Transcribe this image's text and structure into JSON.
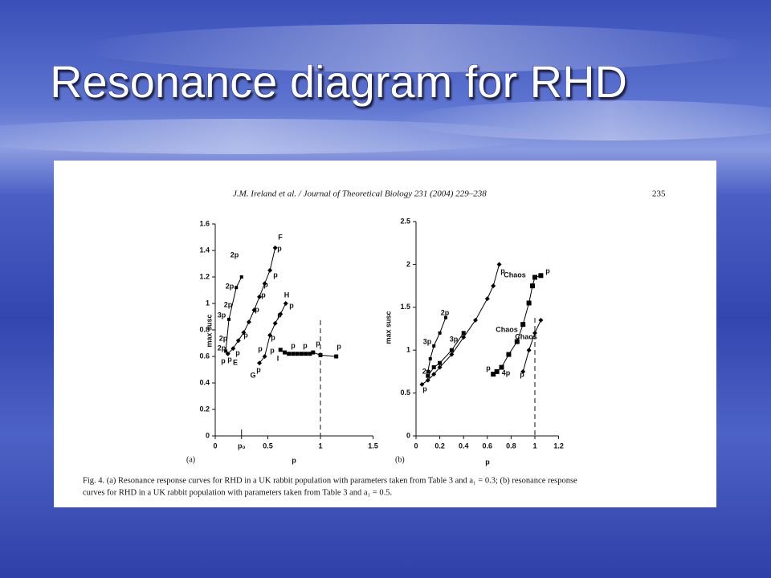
{
  "slide": {
    "title": "Resonance diagram for RHD"
  },
  "figure": {
    "header": "J.M. Ireland et al. / Journal of Theoretical Biology 231 (2004) 229–238",
    "page_number": "235",
    "caption": [
      "Fig. 4. (a) Resonance response curves for RHD in a UK rabbit population with parameters taken from Table 3 and a₁ = 0.3; (b) resonance response",
      "curves for RHD in a UK rabbit population with parameters taken from Table 3 and a₁ = 0.5."
    ]
  },
  "chart_data": [
    {
      "type": "line",
      "panel": "(a)",
      "x_label": "p",
      "y_label": "max susc",
      "xlim": [
        0,
        1.5
      ],
      "xticks": [
        0,
        {
          "value": 0.25,
          "label": "p₀"
        },
        0.5,
        1,
        1.5
      ],
      "ylim": [
        0,
        1.6
      ],
      "yticks": [
        0,
        0.2,
        0.4,
        0.6,
        0.8,
        1,
        1.2,
        1.4,
        1.6
      ],
      "vlines": [
        1
      ],
      "vline_style": "dashed",
      "series": [
        {
          "color": "#000000",
          "marker": "diamond",
          "marker_size": 3,
          "x": [
            0.12,
            0.17,
            0.22,
            0.27,
            0.32,
            0.37,
            0.42,
            0.47,
            0.52,
            0.57
          ],
          "values": [
            0.62,
            0.66,
            0.72,
            0.78,
            0.86,
            0.95,
            1.05,
            1.15,
            1.25,
            1.42
          ]
        },
        {
          "color": "#000000",
          "marker": "square",
          "marker_size": 4,
          "x": [
            0.1,
            0.13,
            0.2,
            0.25
          ],
          "values": [
            0.64,
            0.88,
            1.12,
            1.2
          ]
        },
        {
          "color": "#000000",
          "marker": "diamond",
          "marker_size": 3,
          "x": [
            0.42,
            0.47,
            0.52,
            0.57,
            0.62,
            0.67
          ],
          "values": [
            0.55,
            0.6,
            0.76,
            0.85,
            0.92,
            1.0
          ]
        },
        {
          "color": "#000000",
          "marker": "square",
          "marker_size": 5,
          "x": [
            0.62,
            0.66,
            0.7,
            0.74,
            0.78,
            0.82,
            0.86,
            0.9,
            0.93,
            1.0,
            1.15
          ],
          "values": [
            0.65,
            0.63,
            0.62,
            0.62,
            0.62,
            0.62,
            0.62,
            0.62,
            0.63,
            0.61,
            0.6
          ]
        }
      ],
      "annotations": [
        "F",
        "p",
        "2p",
        "2p",
        "p",
        "2p",
        "p",
        "p",
        "3p",
        "H",
        "p",
        "p",
        "p",
        "2p",
        "p",
        "2p",
        "p",
        "p",
        "p",
        "p",
        "E",
        "p",
        "p",
        "I",
        "G",
        "p",
        "p",
        "p",
        "p",
        "p"
      ]
    },
    {
      "type": "line",
      "panel": "(b)",
      "x_label": "p",
      "y_label": "max susc",
      "xlim": [
        0,
        1.2
      ],
      "xticks": [
        0,
        0.2,
        0.4,
        0.6,
        0.8,
        1,
        1.2
      ],
      "ylim": [
        0,
        2.5
      ],
      "yticks": [
        0,
        0.5,
        1,
        1.5,
        2,
        2.5
      ],
      "vlines": [
        1
      ],
      "vline_style": "dashed",
      "series": [
        {
          "color": "#000000",
          "marker": "diamond",
          "marker_size": 3,
          "x": [
            0.05,
            0.1,
            0.15,
            0.2,
            0.3,
            0.4,
            0.5,
            0.6,
            0.65,
            0.7
          ],
          "values": [
            0.6,
            0.65,
            0.72,
            0.8,
            0.95,
            1.15,
            1.35,
            1.6,
            1.75,
            2.0
          ]
        },
        {
          "color": "#000000",
          "marker": "square",
          "marker_size": 4,
          "x": [
            0.1,
            0.12,
            0.15,
            0.2,
            0.25
          ],
          "values": [
            0.75,
            0.9,
            1.05,
            1.2,
            1.38
          ]
        },
        {
          "color": "#000000",
          "marker": "square",
          "marker_size": 5,
          "x": [
            0.1,
            0.15,
            0.2,
            0.3,
            0.4
          ],
          "values": [
            0.7,
            0.8,
            0.85,
            1.0,
            1.2
          ]
        },
        {
          "color": "#000000",
          "marker": "square",
          "marker_size": 6,
          "x": [
            0.65,
            0.68,
            0.72,
            0.78,
            0.85,
            0.9,
            0.95,
            0.98,
            1.0,
            1.05
          ],
          "values": [
            0.72,
            0.75,
            0.8,
            0.95,
            1.1,
            1.3,
            1.55,
            1.75,
            1.85,
            1.87
          ]
        },
        {
          "color": "#000000",
          "marker": "diamond",
          "marker_size": 3,
          "x": [
            0.9,
            0.95,
            1.0,
            1.05
          ],
          "values": [
            0.75,
            1.0,
            1.2,
            1.35
          ]
        }
      ],
      "annotations": [
        "3p",
        "2p",
        "3p",
        "2p",
        "p",
        "p",
        "Chaos",
        "p",
        "Chaos",
        "Chaos",
        "4p",
        "p",
        "p"
      ]
    }
  ]
}
